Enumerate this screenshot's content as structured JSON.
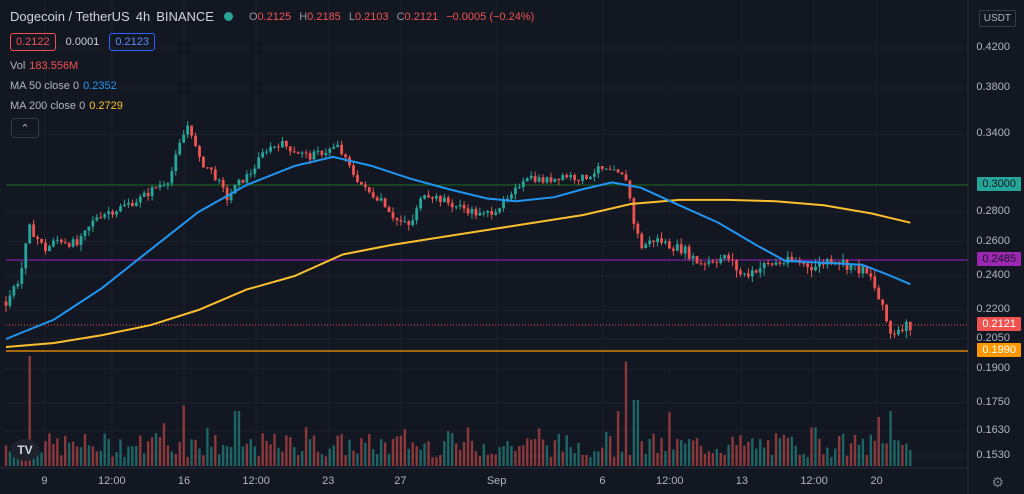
{
  "header": {
    "symbol": "Dogecoin / TetherUS",
    "interval": "4h",
    "exchange": "BINANCE",
    "ohlc": [
      {
        "k": "O",
        "v": "0.2125"
      },
      {
        "k": "H",
        "v": "0.2185"
      },
      {
        "k": "L",
        "v": "0.2103"
      },
      {
        "k": "C",
        "v": "0.2121"
      }
    ],
    "change": "−0.0005 (−0.24%)"
  },
  "quote": {
    "sell": "0.2122",
    "spread": "0.0001",
    "buy": "0.2123"
  },
  "indicators": [
    {
      "label": "Vol",
      "value": "183.556M",
      "color": "#ef5350"
    },
    {
      "label": "MA 50 close 0",
      "value": "0.2352",
      "color": "#2196f3"
    },
    {
      "label": "MA 200 close 0",
      "value": "0.2729",
      "color": "#fbc02d"
    }
  ],
  "collapse_icon": "chevron-up-icon",
  "colors": {
    "up": "#26a69a",
    "down": "#ef5350",
    "ma50": "#2196f3",
    "ma200": "#fbc02d",
    "bg": "#131722"
  },
  "chart_data": {
    "type": "candlestick",
    "currency": "USDT",
    "y_tick_labels": [
      "0.4200",
      "0.3800",
      "0.3400",
      "0.2800",
      "0.2600",
      "0.2400",
      "0.2200",
      "0.2050",
      "0.1900",
      "0.1750",
      "0.1630",
      "0.1530"
    ],
    "y_tick_values": [
      0.42,
      0.38,
      0.34,
      0.28,
      0.26,
      0.24,
      0.22,
      0.205,
      0.19,
      0.175,
      0.163,
      0.153
    ],
    "x_tick_labels": [
      "9",
      "12:00",
      "16",
      "12:00",
      "23",
      "27",
      "Sep",
      "6",
      "12:00",
      "13",
      "12:00",
      "20"
    ],
    "x_tick_positions": [
      0.04,
      0.11,
      0.185,
      0.26,
      0.335,
      0.41,
      0.51,
      0.62,
      0.69,
      0.765,
      0.84,
      0.905
    ],
    "price_path": [
      [
        0.0,
        0.225
      ],
      [
        0.015,
        0.24
      ],
      [
        0.025,
        0.27
      ],
      [
        0.04,
        0.255
      ],
      [
        0.055,
        0.262
      ],
      [
        0.075,
        0.258
      ],
      [
        0.095,
        0.278
      ],
      [
        0.115,
        0.282
      ],
      [
        0.14,
        0.29
      ],
      [
        0.155,
        0.298
      ],
      [
        0.17,
        0.305
      ],
      [
        0.18,
        0.33
      ],
      [
        0.19,
        0.35
      ],
      [
        0.2,
        0.32
      ],
      [
        0.215,
        0.31
      ],
      [
        0.23,
        0.29
      ],
      [
        0.24,
        0.3
      ],
      [
        0.255,
        0.31
      ],
      [
        0.27,
        0.328
      ],
      [
        0.285,
        0.333
      ],
      [
        0.3,
        0.327
      ],
      [
        0.315,
        0.322
      ],
      [
        0.33,
        0.326
      ],
      [
        0.345,
        0.33
      ],
      [
        0.36,
        0.31
      ],
      [
        0.375,
        0.295
      ],
      [
        0.39,
        0.29
      ],
      [
        0.405,
        0.275
      ],
      [
        0.42,
        0.27
      ],
      [
        0.435,
        0.295
      ],
      [
        0.45,
        0.29
      ],
      [
        0.465,
        0.285
      ],
      [
        0.48,
        0.282
      ],
      [
        0.495,
        0.277
      ],
      [
        0.51,
        0.283
      ],
      [
        0.525,
        0.29
      ],
      [
        0.54,
        0.308
      ],
      [
        0.56,
        0.303
      ],
      [
        0.58,
        0.308
      ],
      [
        0.6,
        0.305
      ],
      [
        0.615,
        0.312
      ],
      [
        0.63,
        0.31
      ],
      [
        0.645,
        0.305
      ],
      [
        0.652,
        0.275
      ],
      [
        0.66,
        0.257
      ],
      [
        0.675,
        0.262
      ],
      [
        0.69,
        0.258
      ],
      [
        0.705,
        0.255
      ],
      [
        0.72,
        0.247
      ],
      [
        0.735,
        0.249
      ],
      [
        0.75,
        0.25
      ],
      [
        0.765,
        0.24
      ],
      [
        0.78,
        0.244
      ],
      [
        0.8,
        0.247
      ],
      [
        0.82,
        0.248
      ],
      [
        0.84,
        0.245
      ],
      [
        0.86,
        0.25
      ],
      [
        0.875,
        0.246
      ],
      [
        0.89,
        0.243
      ],
      [
        0.9,
        0.238
      ],
      [
        0.91,
        0.222
      ],
      [
        0.92,
        0.207
      ],
      [
        0.93,
        0.212
      ],
      [
        0.94,
        0.2121
      ]
    ],
    "ma50_path": [
      [
        0.0,
        0.205
      ],
      [
        0.05,
        0.215
      ],
      [
        0.1,
        0.233
      ],
      [
        0.15,
        0.255
      ],
      [
        0.2,
        0.28
      ],
      [
        0.25,
        0.3
      ],
      [
        0.3,
        0.315
      ],
      [
        0.34,
        0.322
      ],
      [
        0.38,
        0.315
      ],
      [
        0.42,
        0.305
      ],
      [
        0.46,
        0.297
      ],
      [
        0.5,
        0.29
      ],
      [
        0.53,
        0.288
      ],
      [
        0.57,
        0.291
      ],
      [
        0.6,
        0.297
      ],
      [
        0.63,
        0.302
      ],
      [
        0.66,
        0.298
      ],
      [
        0.7,
        0.285
      ],
      [
        0.74,
        0.273
      ],
      [
        0.78,
        0.258
      ],
      [
        0.81,
        0.248
      ],
      [
        0.85,
        0.247
      ],
      [
        0.89,
        0.246
      ],
      [
        0.92,
        0.24
      ],
      [
        0.94,
        0.2352
      ]
    ],
    "ma200_path": [
      [
        0.0,
        0.201
      ],
      [
        0.05,
        0.203
      ],
      [
        0.1,
        0.207
      ],
      [
        0.15,
        0.212
      ],
      [
        0.2,
        0.22
      ],
      [
        0.25,
        0.232
      ],
      [
        0.3,
        0.24
      ],
      [
        0.35,
        0.252
      ],
      [
        0.4,
        0.258
      ],
      [
        0.45,
        0.263
      ],
      [
        0.5,
        0.268
      ],
      [
        0.55,
        0.273
      ],
      [
        0.6,
        0.278
      ],
      [
        0.65,
        0.286
      ],
      [
        0.7,
        0.289
      ],
      [
        0.75,
        0.289
      ],
      [
        0.8,
        0.288
      ],
      [
        0.85,
        0.285
      ],
      [
        0.9,
        0.279
      ],
      [
        0.94,
        0.2729
      ]
    ],
    "horizontal_levels": [
      {
        "value": 0.3,
        "label": "0.3000",
        "color": "#1b5e20",
        "tag_bg": "#26a69a"
      },
      {
        "value": 0.2485,
        "label": "0.2485",
        "color": "#7b1fa2",
        "tag_bg": "#9c27b0"
      },
      {
        "value": 0.2121,
        "label": "0.2121",
        "color": "#ef5350",
        "tag_bg": "#ef5350"
      },
      {
        "value": 0.199,
        "label": "0.1990",
        "color": "#ff9800",
        "tag_bg": "#ff9800"
      }
    ],
    "volume_spikes": [
      [
        0.025,
        1.0
      ],
      [
        0.185,
        0.55
      ],
      [
        0.24,
        0.5
      ],
      [
        0.48,
        0.35
      ],
      [
        0.645,
        0.95
      ],
      [
        0.655,
        0.6
      ],
      [
        0.84,
        0.35
      ],
      [
        0.92,
        0.5
      ]
    ]
  }
}
